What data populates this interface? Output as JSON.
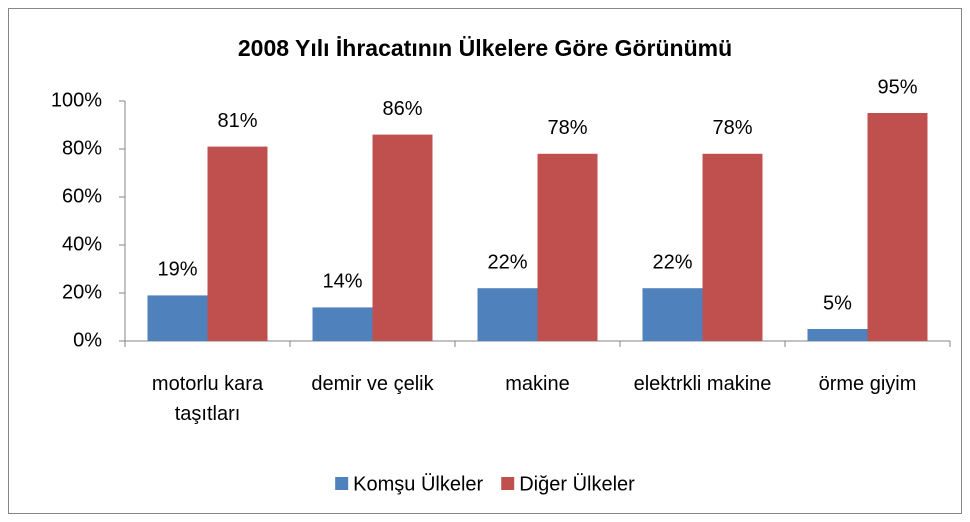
{
  "chart_data": {
    "type": "bar",
    "title": "2008 Yılı İhracatının Ülkelere Göre Görünümü",
    "categories": [
      "motorlu kara taşıtları",
      "demir ve çelik",
      "makine",
      "elektrkli makine",
      "örme giyim"
    ],
    "series": [
      {
        "name": "Komşu Ülkeler",
        "color": "#4f81bd",
        "values": [
          19,
          14,
          22,
          22,
          5
        ],
        "value_labels": [
          "19%",
          "14%",
          "22%",
          "22%",
          "5%"
        ]
      },
      {
        "name": "Diğer Ülkeler",
        "color": "#c0504d",
        "values": [
          81,
          86,
          78,
          78,
          95
        ],
        "value_labels": [
          "81%",
          "86%",
          "78%",
          "78%",
          "95%"
        ]
      }
    ],
    "ylim": [
      0,
      100
    ],
    "yticks": [
      {
        "value": 0,
        "label": "0%"
      },
      {
        "value": 20,
        "label": "20%"
      },
      {
        "value": 40,
        "label": "40%"
      },
      {
        "value": 60,
        "label": "60%"
      },
      {
        "value": 80,
        "label": "80%"
      },
      {
        "value": 100,
        "label": "100%"
      }
    ],
    "grid": false,
    "legend": "bottom"
  }
}
